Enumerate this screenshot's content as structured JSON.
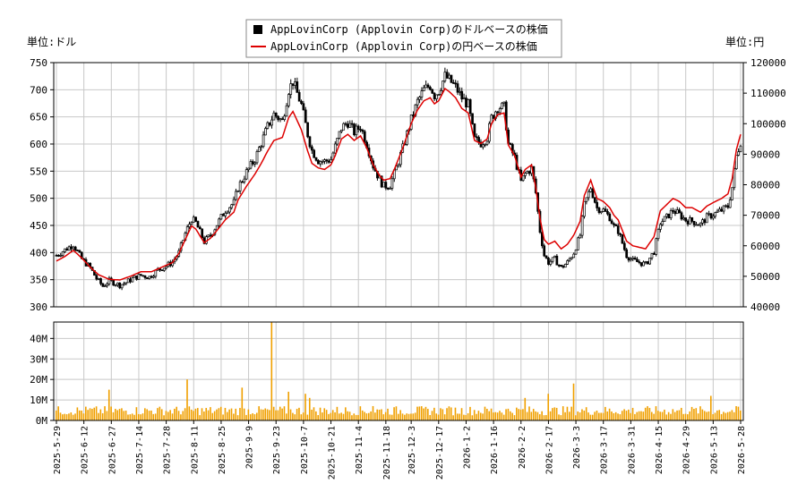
{
  "chart_data": {
    "type": "candlestick+line+bar",
    "legend": {
      "placement": "top-center",
      "entries": [
        {
          "name": "AppLovinCorp (Applovin Corp)のドルベースの株価",
          "marker": "black-square"
        },
        {
          "name": "AppLovinCorp (Applovin Corp)の円ベースの株価",
          "marker": "red-line",
          "color": "#dd0000"
        }
      ]
    },
    "left_unit": "単位:ドル",
    "right_unit": "単位:円",
    "price_axis": {
      "ylim": [
        300,
        750
      ],
      "ticks": [
        "300",
        "350",
        "400",
        "450",
        "500",
        "550",
        "600",
        "650",
        "700",
        "750"
      ]
    },
    "yen_axis": {
      "ylim": [
        40000,
        120000
      ],
      "ticks": [
        "40000",
        "50000",
        "60000",
        "70000",
        "80000",
        "90000",
        "100000",
        "110000",
        "120000"
      ]
    },
    "volume_axis": {
      "ylim": [
        0,
        48
      ],
      "ticks": [
        "0M",
        "10M",
        "20M",
        "30M",
        "40M"
      ]
    },
    "x_tick_labels": [
      "2025-5-29",
      "2025-6-12",
      "2025-6-27",
      "2025-7-14",
      "2025-7-28",
      "2025-8-11",
      "2025-8-25",
      "2025-9-9",
      "2025-9-23",
      "2025-10-7",
      "2025-10-21",
      "2025-11-4",
      "2025-11-18",
      "2025-12-3",
      "2025-12-17",
      "2026-1-2",
      "2026-1-16",
      "2026-2-2",
      "2026-2-17",
      "2026-3-3",
      "2026-3-17",
      "2026-3-31",
      "2026-4-15",
      "2026-4-29",
      "2026-5-13",
      "2026-5-28"
    ],
    "grid": true,
    "colors": {
      "candle": "#000000",
      "yen_line": "#dd0000",
      "volume": "#f0a000",
      "grid": "#c8c8c8"
    },
    "price_keypoints": [
      [
        0,
        395
      ],
      [
        4,
        405
      ],
      [
        8,
        415
      ],
      [
        12,
        388
      ],
      [
        16,
        372
      ],
      [
        19,
        352
      ],
      [
        22,
        338
      ],
      [
        25,
        348
      ],
      [
        30,
        340
      ],
      [
        33,
        345
      ],
      [
        36,
        352
      ],
      [
        40,
        358
      ],
      [
        44,
        355
      ],
      [
        48,
        368
      ],
      [
        52,
        375
      ],
      [
        55,
        383
      ],
      [
        58,
        400
      ],
      [
        61,
        435
      ],
      [
        64,
        462
      ],
      [
        66,
        455
      ],
      [
        70,
        420
      ],
      [
        73,
        432
      ],
      [
        76,
        452
      ],
      [
        80,
        478
      ],
      [
        84,
        492
      ],
      [
        86,
        520
      ],
      [
        90,
        548
      ],
      [
        94,
        572
      ],
      [
        97,
        602
      ],
      [
        100,
        632
      ],
      [
        103,
        655
      ],
      [
        107,
        642
      ],
      [
        110,
        700
      ],
      [
        112,
        715
      ],
      [
        116,
        672
      ],
      [
        119,
        618
      ],
      [
        121,
        588
      ],
      [
        124,
        570
      ],
      [
        127,
        568
      ],
      [
        130,
        572
      ],
      [
        132,
        595
      ],
      [
        135,
        630
      ],
      [
        138,
        640
      ],
      [
        141,
        622
      ],
      [
        144,
        632
      ],
      [
        147,
        600
      ],
      [
        150,
        560
      ],
      [
        153,
        535
      ],
      [
        155,
        522
      ],
      [
        158,
        525
      ],
      [
        160,
        545
      ],
      [
        164,
        592
      ],
      [
        168,
        645
      ],
      [
        171,
        678
      ],
      [
        174,
        700
      ],
      [
        177,
        708
      ],
      [
        179,
        690
      ],
      [
        181,
        698
      ],
      [
        184,
        725
      ],
      [
        186,
        718
      ],
      [
        189,
        705
      ],
      [
        192,
        685
      ],
      [
        195,
        672
      ],
      [
        198,
        608
      ],
      [
        201,
        602
      ],
      [
        204,
        612
      ],
      [
        206,
        648
      ],
      [
        209,
        668
      ],
      [
        212,
        668
      ],
      [
        214,
        600
      ],
      [
        217,
        575
      ],
      [
        220,
        530
      ],
      [
        222,
        545
      ],
      [
        225,
        555
      ],
      [
        227,
        510
      ],
      [
        229,
        440
      ],
      [
        231,
        395
      ],
      [
        233,
        382
      ],
      [
        236,
        388
      ],
      [
        239,
        372
      ],
      [
        242,
        382
      ],
      [
        245,
        400
      ],
      [
        248,
        432
      ],
      [
        250,
        488
      ],
      [
        253,
        520
      ],
      [
        256,
        482
      ],
      [
        259,
        478
      ],
      [
        262,
        465
      ],
      [
        264,
        448
      ],
      [
        266,
        440
      ],
      [
        270,
        395
      ],
      [
        273,
        385
      ],
      [
        276,
        382
      ],
      [
        279,
        378
      ],
      [
        283,
        402
      ],
      [
        286,
        455
      ],
      [
        289,
        465
      ],
      [
        292,
        478
      ],
      [
        295,
        470
      ],
      [
        298,
        460
      ],
      [
        301,
        458
      ],
      [
        305,
        452
      ],
      [
        308,
        465
      ],
      [
        312,
        472
      ],
      [
        315,
        478
      ],
      [
        318,
        485
      ],
      [
        320,
        520
      ],
      [
        322,
        578
      ],
      [
        324,
        605
      ]
    ],
    "yen_keypoints": [
      [
        0,
        55000
      ],
      [
        4,
        56500
      ],
      [
        8,
        58500
      ],
      [
        12,
        56000
      ],
      [
        16,
        53000
      ],
      [
        20,
        50500
      ],
      [
        25,
        49000
      ],
      [
        30,
        48800
      ],
      [
        35,
        50000
      ],
      [
        40,
        51500
      ],
      [
        45,
        51500
      ],
      [
        50,
        53000
      ],
      [
        55,
        54500
      ],
      [
        58,
        57500
      ],
      [
        61,
        62000
      ],
      [
        64,
        66500
      ],
      [
        66,
        65500
      ],
      [
        70,
        61000
      ],
      [
        73,
        62500
      ],
      [
        76,
        65000
      ],
      [
        80,
        68500
      ],
      [
        84,
        71000
      ],
      [
        86,
        75000
      ],
      [
        90,
        79500
      ],
      [
        94,
        83500
      ],
      [
        97,
        87000
      ],
      [
        100,
        91000
      ],
      [
        103,
        94500
      ],
      [
        107,
        95500
      ],
      [
        110,
        102000
      ],
      [
        112,
        104000
      ],
      [
        116,
        98000
      ],
      [
        119,
        91000
      ],
      [
        121,
        87000
      ],
      [
        124,
        85500
      ],
      [
        127,
        85000
      ],
      [
        130,
        86500
      ],
      [
        132,
        89500
      ],
      [
        135,
        95000
      ],
      [
        138,
        96500
      ],
      [
        141,
        94500
      ],
      [
        144,
        96000
      ],
      [
        147,
        92000
      ],
      [
        150,
        86500
      ],
      [
        153,
        83000
      ],
      [
        155,
        81500
      ],
      [
        158,
        82000
      ],
      [
        160,
        85000
      ],
      [
        164,
        92000
      ],
      [
        168,
        100000
      ],
      [
        171,
        104500
      ],
      [
        174,
        107500
      ],
      [
        177,
        108500
      ],
      [
        179,
        106500
      ],
      [
        181,
        107500
      ],
      [
        184,
        111500
      ],
      [
        186,
        110500
      ],
      [
        189,
        108500
      ],
      [
        192,
        105000
      ],
      [
        195,
        103500
      ],
      [
        198,
        94500
      ],
      [
        201,
        93500
      ],
      [
        204,
        95000
      ],
      [
        206,
        100000
      ],
      [
        209,
        103000
      ],
      [
        212,
        103500
      ],
      [
        214,
        93000
      ],
      [
        217,
        89500
      ],
      [
        220,
        82500
      ],
      [
        222,
        85000
      ],
      [
        225,
        86500
      ],
      [
        227,
        79000
      ],
      [
        229,
        69000
      ],
      [
        231,
        62000
      ],
      [
        233,
        60500
      ],
      [
        236,
        61500
      ],
      [
        239,
        59000
      ],
      [
        242,
        60500
      ],
      [
        245,
        63500
      ],
      [
        248,
        68000
      ],
      [
        250,
        76500
      ],
      [
        253,
        81500
      ],
      [
        256,
        75500
      ],
      [
        259,
        74500
      ],
      [
        262,
        72500
      ],
      [
        264,
        70000
      ],
      [
        266,
        68500
      ],
      [
        270,
        61500
      ],
      [
        273,
        60000
      ],
      [
        276,
        59500
      ],
      [
        279,
        59000
      ],
      [
        283,
        63000
      ],
      [
        286,
        71500
      ],
      [
        289,
        73500
      ],
      [
        292,
        75500
      ],
      [
        295,
        74500
      ],
      [
        298,
        72500
      ],
      [
        301,
        72500
      ],
      [
        305,
        71000
      ],
      [
        308,
        73000
      ],
      [
        312,
        74500
      ],
      [
        315,
        75500
      ],
      [
        318,
        77000
      ],
      [
        320,
        82000
      ],
      [
        322,
        91500
      ],
      [
        324,
        96500
      ]
    ],
    "volume_spikes": [
      [
        25,
        15
      ],
      [
        62,
        20
      ],
      [
        88,
        16
      ],
      [
        102,
        48
      ],
      [
        110,
        14
      ],
      [
        118,
        13
      ],
      [
        120,
        11
      ],
      [
        150,
        7
      ],
      [
        185,
        6
      ],
      [
        222,
        11
      ],
      [
        233,
        13
      ],
      [
        245,
        18
      ],
      [
        310,
        12
      ]
    ]
  }
}
